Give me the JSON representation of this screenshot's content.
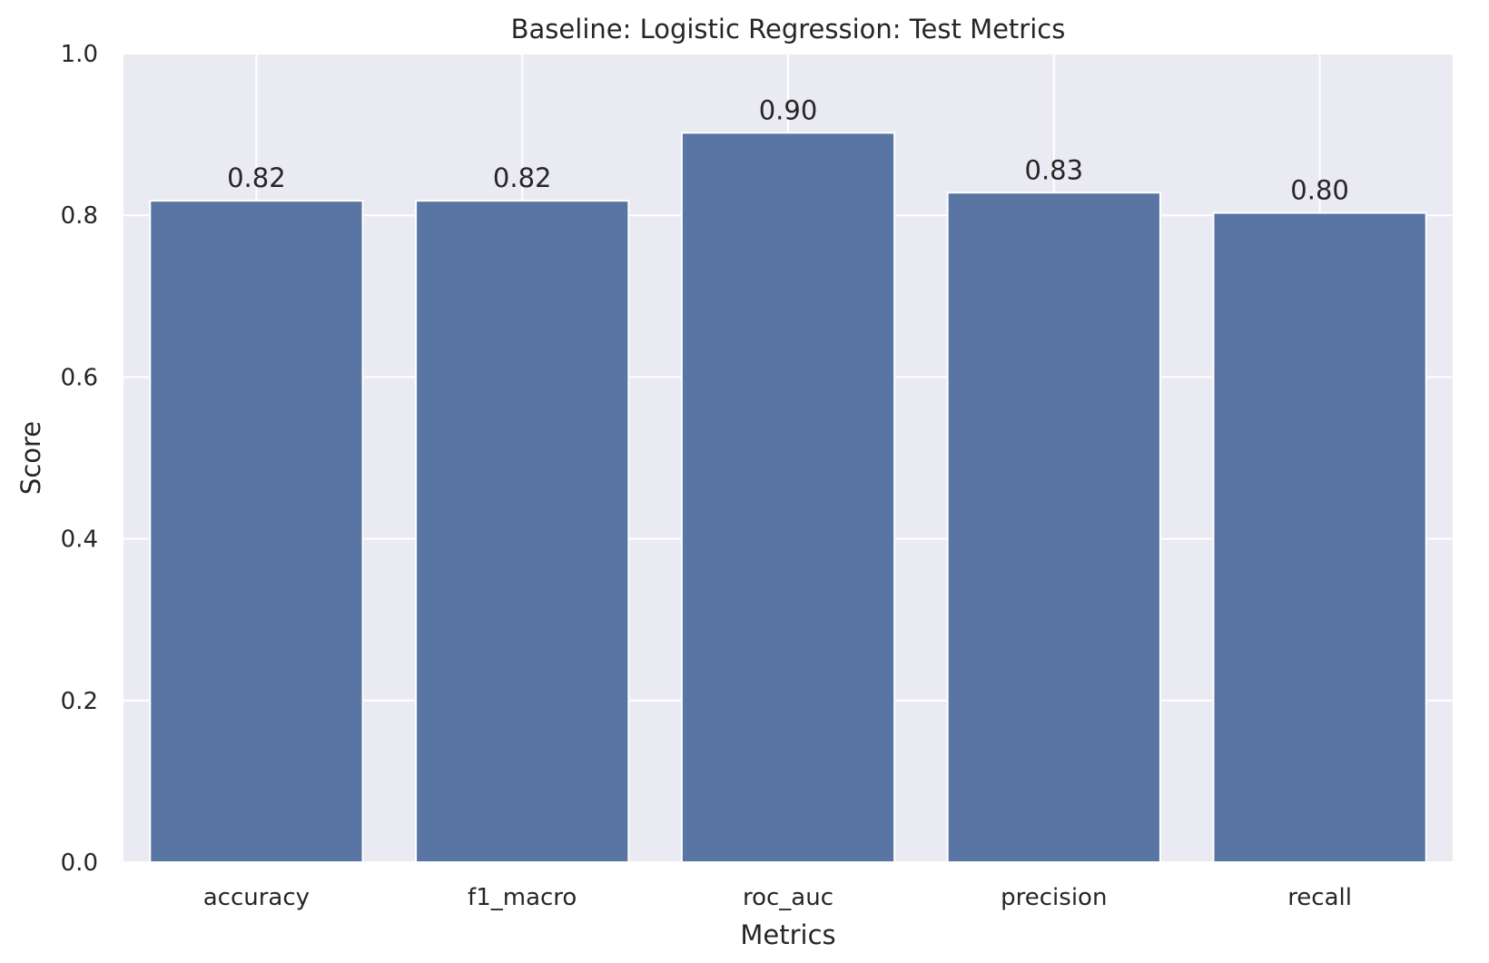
{
  "chart_data": {
    "type": "bar",
    "title": "Baseline: Logistic Regression: Test Metrics",
    "xlabel": "Metrics",
    "ylabel": "Score",
    "categories": [
      "accuracy",
      "f1_macro",
      "roc_auc",
      "precision",
      "recall"
    ],
    "values": [
      0.818,
      0.818,
      0.902,
      0.828,
      0.803
    ],
    "value_labels": [
      "0.82",
      "0.82",
      "0.90",
      "0.83",
      "0.80"
    ],
    "ylim": [
      0,
      1.0
    ],
    "yticks": [
      0.0,
      0.2,
      0.4,
      0.6,
      0.8,
      1.0
    ],
    "ytick_labels": [
      "0.0",
      "0.2",
      "0.4",
      "0.6",
      "0.8",
      "1.0"
    ],
    "grid": true,
    "colors": {
      "bar": "#5975a4",
      "plot_background": "#eaeaf2",
      "grid": "#ffffff"
    }
  }
}
